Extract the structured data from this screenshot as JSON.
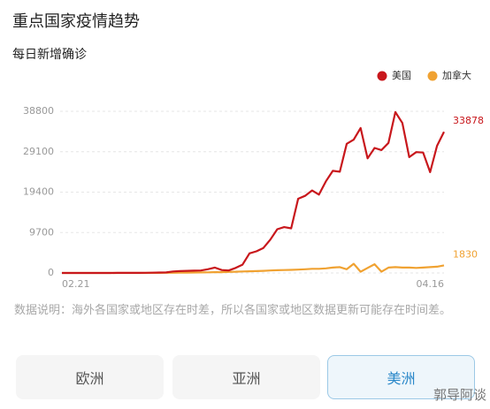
{
  "header": {
    "title": "重点国家疫情趋势"
  },
  "chart_data": {
    "type": "line",
    "title": "每日新增确诊",
    "categories": [
      "02.21",
      null,
      null,
      null,
      null,
      null,
      null,
      null,
      null,
      null,
      null,
      null,
      null,
      null,
      null,
      null,
      null,
      null,
      null,
      null,
      null,
      null,
      null,
      null,
      null,
      null,
      null,
      null,
      null,
      null,
      null,
      null,
      null,
      null,
      null,
      null,
      null,
      null,
      null,
      null,
      null,
      null,
      null,
      null,
      null,
      null,
      null,
      null,
      null,
      null,
      null,
      null,
      null,
      null,
      null,
      "04.16"
    ],
    "series": [
      {
        "name": "美国",
        "color": "#c8171c",
        "values": [
          0,
          0,
          0,
          0,
          0,
          0,
          0,
          10,
          20,
          20,
          20,
          30,
          50,
          70,
          100,
          120,
          350,
          450,
          500,
          550,
          600,
          900,
          1300,
          700,
          600,
          1200,
          2000,
          4700,
          5200,
          6000,
          8000,
          10500,
          11000,
          10700,
          17800,
          18500,
          19800,
          18800,
          22000,
          24500,
          24300,
          31000,
          32000,
          34800,
          27500,
          30000,
          29500,
          31200,
          38600,
          36000,
          27800,
          29000,
          28900,
          24200,
          30500,
          33878
        ]
      },
      {
        "name": "加拿大",
        "color": "#f0a232",
        "values": [
          0,
          0,
          0,
          0,
          0,
          0,
          0,
          0,
          0,
          0,
          0,
          10,
          10,
          20,
          30,
          40,
          50,
          60,
          80,
          100,
          120,
          150,
          200,
          200,
          250,
          300,
          350,
          400,
          450,
          500,
          600,
          650,
          700,
          750,
          800,
          900,
          1000,
          1000,
          1100,
          1300,
          1400,
          900,
          2200,
          300,
          1200,
          2100,
          300,
          1300,
          1400,
          1300,
          1300,
          1200,
          1300,
          1400,
          1500,
          1830
        ]
      }
    ],
    "ylim": [
      0,
      38800
    ],
    "yticks": [
      0,
      9700,
      19400,
      29100,
      38800
    ],
    "grid": true,
    "legend": "top-right"
  },
  "note": "数据说明：海外各国家或地区存在时差，所以各国家或地区数据更新可能存在时间差。",
  "tabs": [
    "欧洲",
    "亚洲",
    "美洲"
  ],
  "watermark": "郭导阿谈"
}
